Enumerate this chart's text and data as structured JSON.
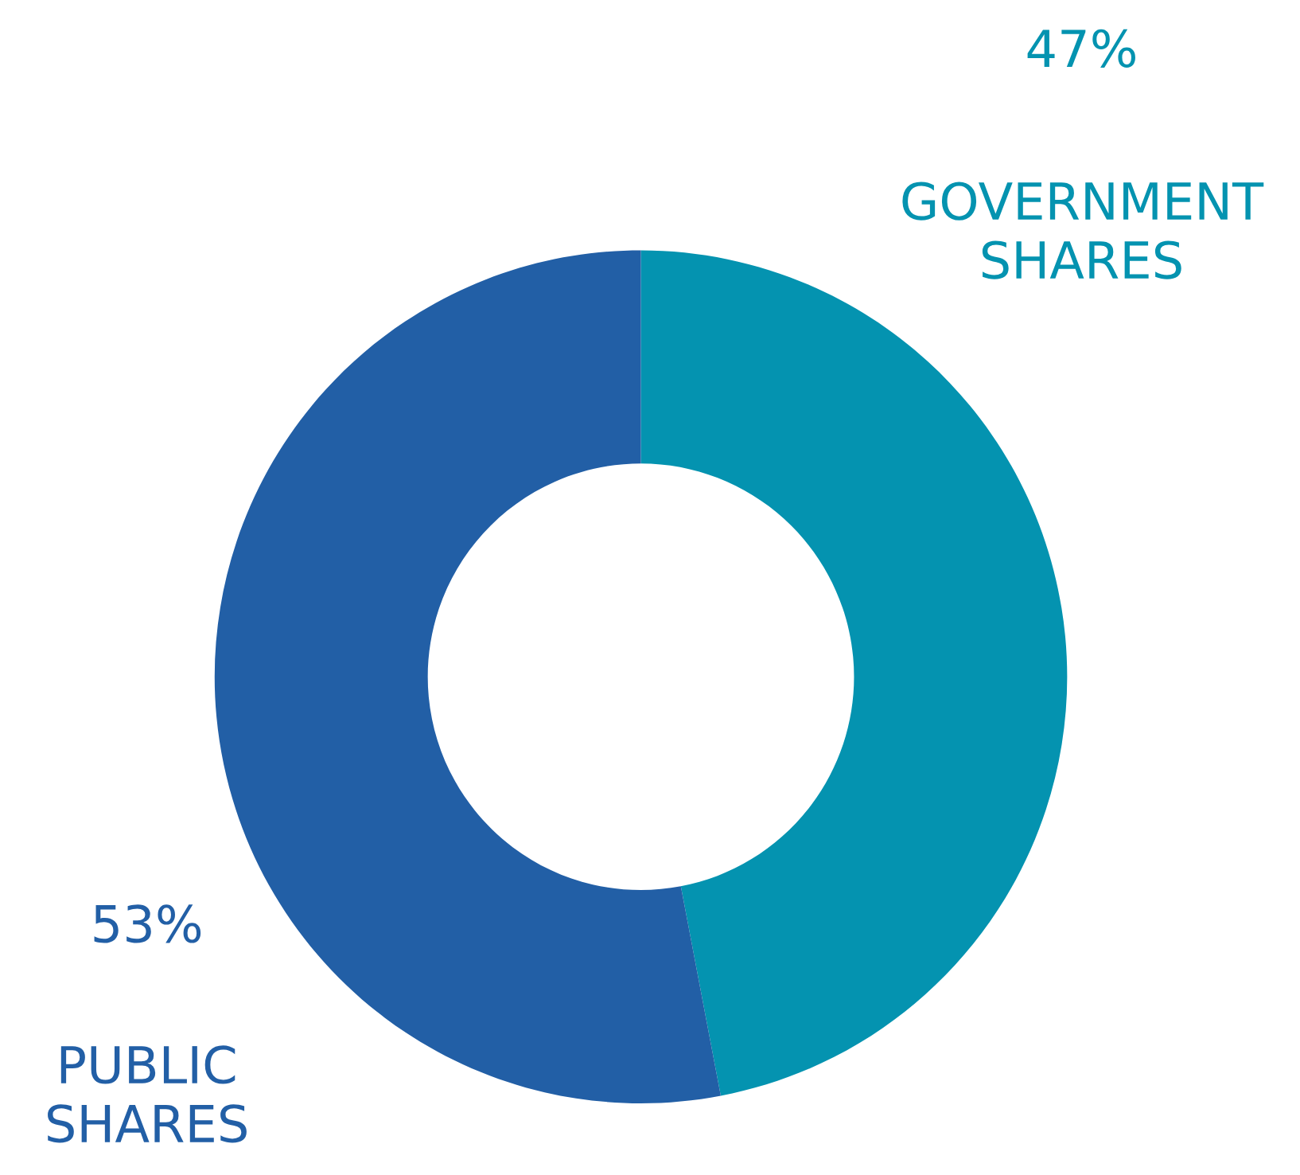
{
  "chart_data": {
    "type": "donut",
    "categories": [
      "GOVERNMENT\nSHARES",
      "PUBLIC\nSHARES"
    ],
    "values": [
      47,
      53
    ],
    "colors": [
      "#0493b0",
      "#225fa6"
    ],
    "value_labels": [
      "47%",
      "53%"
    ],
    "legend": false
  }
}
